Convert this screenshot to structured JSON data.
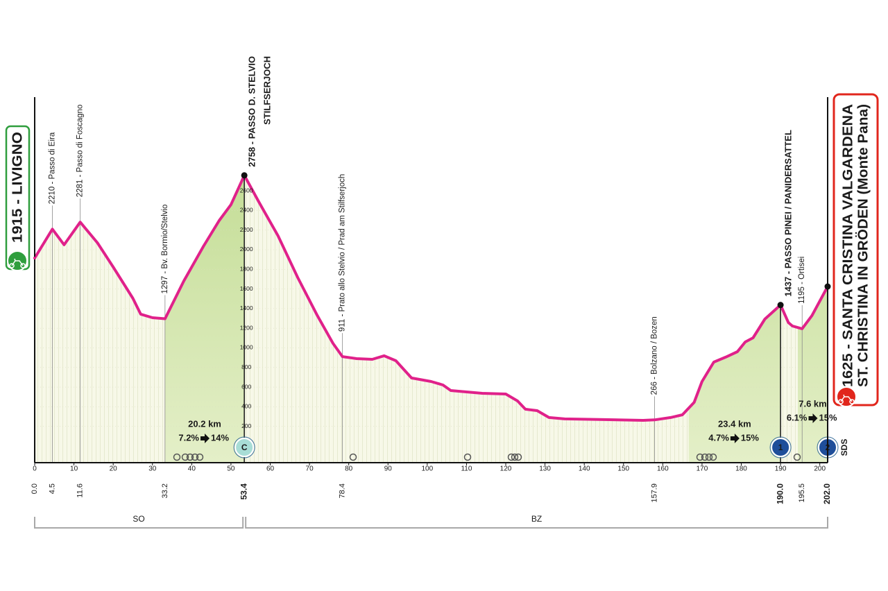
{
  "chart_data": {
    "type": "area",
    "x": [
      0,
      4.5,
      7.5,
      11.6,
      16,
      20,
      25,
      27,
      30,
      33.2,
      38,
      43,
      47,
      50,
      53.4,
      57,
      62,
      67,
      72,
      76,
      78.4,
      82,
      86,
      89,
      92,
      96,
      101,
      104,
      106,
      114,
      120,
      123,
      125,
      128,
      131,
      135,
      145,
      155,
      157.9,
      162,
      165,
      168,
      170,
      173,
      176,
      179,
      181,
      183,
      186,
      190,
      192,
      193,
      195.5,
      198,
      202
    ],
    "values": [
      1915,
      2210,
      2050,
      2281,
      2070,
      1823,
      1505,
      1343,
      1307,
      1297,
      1682,
      2035,
      2297,
      2459,
      2758,
      2495,
      2141,
      1717,
      1329,
      1046,
      911,
      890,
      883,
      919,
      869,
      693,
      657,
      622,
      565,
      537,
      530,
      459,
      375,
      360,
      290,
      276,
      269,
      261,
      266,
      290,
      318,
      445,
      657,
      855,
      905,
      961,
      1060,
      1102,
      1293,
      1437,
      1258,
      1223,
      1195,
      1329,
      1625
    ],
    "color": "#e0218a",
    "xlim": [
      0,
      202
    ],
    "xticks": [
      0,
      10,
      20,
      30,
      40,
      50,
      60,
      70,
      80,
      90,
      100,
      110,
      120,
      130,
      140,
      150,
      160,
      170,
      180,
      190,
      200
    ],
    "ylim": [
      -170,
      3555
    ],
    "yticks": [
      200,
      400,
      600,
      800,
      1000,
      1200,
      1400,
      1600,
      1800,
      2000,
      2200,
      2400,
      2600
    ],
    "grid": true,
    "start": {
      "km": {
        "value": 0,
        "label": "0.0"
      },
      "elevation": 1915,
      "label": "1915 - LIVIGNO"
    },
    "finish": {
      "km": {
        "value": 202,
        "label": "202.0"
      },
      "elevation": 1625,
      "lines": [
        "1625 - SANTA CRISTINA VALGARDENA",
        "ST. CHRISTINA IN GRÖDEN (Monte Pana)"
      ],
      "note": "SDS"
    },
    "major_points": [
      {
        "km": {
          "value": 53.4,
          "label": "53.4"
        },
        "elevation": 2758,
        "lines": [
          "2758 - PASSO D. STELVIO",
          "STILFSERJOCH"
        ]
      },
      {
        "km": {
          "value": 190,
          "label": "190.0"
        },
        "elevation": 1437,
        "lines": [
          "1437 - PASSO PINEI / PANIDERSATTEL"
        ]
      }
    ],
    "minor_points": [
      {
        "km": {
          "value": 4.5,
          "label": "4.5"
        },
        "elevation": 2210,
        "label": "2210 - Passo di Eira"
      },
      {
        "km": {
          "value": 11.6,
          "label": "11.6"
        },
        "elevation": 2281,
        "label": "2281 - Passo di Foscagno"
      },
      {
        "km": {
          "value": 33.2,
          "label": "33.2"
        },
        "elevation": 1297,
        "label": "1297 - Bv. Bormio/Stelvio"
      },
      {
        "km": {
          "value": 78.4,
          "label": "78.4"
        },
        "elevation": 911,
        "label": "911 - Prato allo Stelvio / Prad am Stilfserjoch"
      },
      {
        "km": {
          "value": 157.9,
          "label": "157.9"
        },
        "elevation": 266,
        "label": "266 - Bolzano / Bozen"
      },
      {
        "km": {
          "value": 195.5,
          "label": "195.5"
        },
        "elevation": 1195,
        "label": "1195 - Ortisei"
      }
    ],
    "climbs": [
      {
        "start": 33.2,
        "end": 53.4,
        "length": "20.2 km",
        "average": "7.2%",
        "max": "14%",
        "category": "C"
      },
      {
        "start": 166.6,
        "end": 190,
        "length": "23.4 km",
        "average": "4.7%",
        "max": "15%",
        "category": "1"
      },
      {
        "start": 194.4,
        "end": 202,
        "length": "7.6 km",
        "average": "6.1%",
        "max": "15%",
        "category": "2"
      }
    ],
    "zones": [
      {
        "start": 0,
        "end": 53.4,
        "label": "SO"
      },
      {
        "start": 53.4,
        "end": 202,
        "label": "BZ"
      }
    ]
  }
}
